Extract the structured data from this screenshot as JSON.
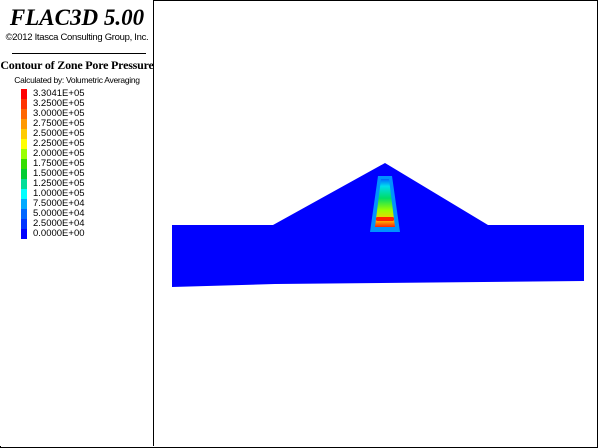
{
  "app": {
    "title": "FLAC3D 5.00",
    "copyright": "©2012 Itasca Consulting Group, Inc."
  },
  "legend": {
    "title": "Contour of Zone Pore Pressure",
    "calculated_by": "Calculated by: Volumetric Averaging",
    "items": [
      {
        "label": "3.3041E+05",
        "color": "#ff0000"
      },
      {
        "label": "3.2500E+05",
        "color": "#ff3300"
      },
      {
        "label": "3.0000E+05",
        "color": "#ff6600"
      },
      {
        "label": "2.7500E+05",
        "color": "#ff9900"
      },
      {
        "label": "2.5000E+05",
        "color": "#ffcc00"
      },
      {
        "label": "2.2500E+05",
        "color": "#ffff00"
      },
      {
        "label": "2.0000E+05",
        "color": "#99ff00"
      },
      {
        "label": "1.7500E+05",
        "color": "#33dd00"
      },
      {
        "label": "1.5000E+05",
        "color": "#00cc33"
      },
      {
        "label": "1.2500E+05",
        "color": "#00dd99"
      },
      {
        "label": "1.0000E+05",
        "color": "#00ffff"
      },
      {
        "label": "7.5000E+04",
        "color": "#00aaff"
      },
      {
        "label": "5.0000E+04",
        "color": "#0066ff"
      },
      {
        "label": "2.5000E+04",
        "color": "#0033ff"
      },
      {
        "label": "0.0000E+00",
        "color": "#0000ff"
      }
    ]
  },
  "model": {
    "base_color": "#0000ff"
  }
}
